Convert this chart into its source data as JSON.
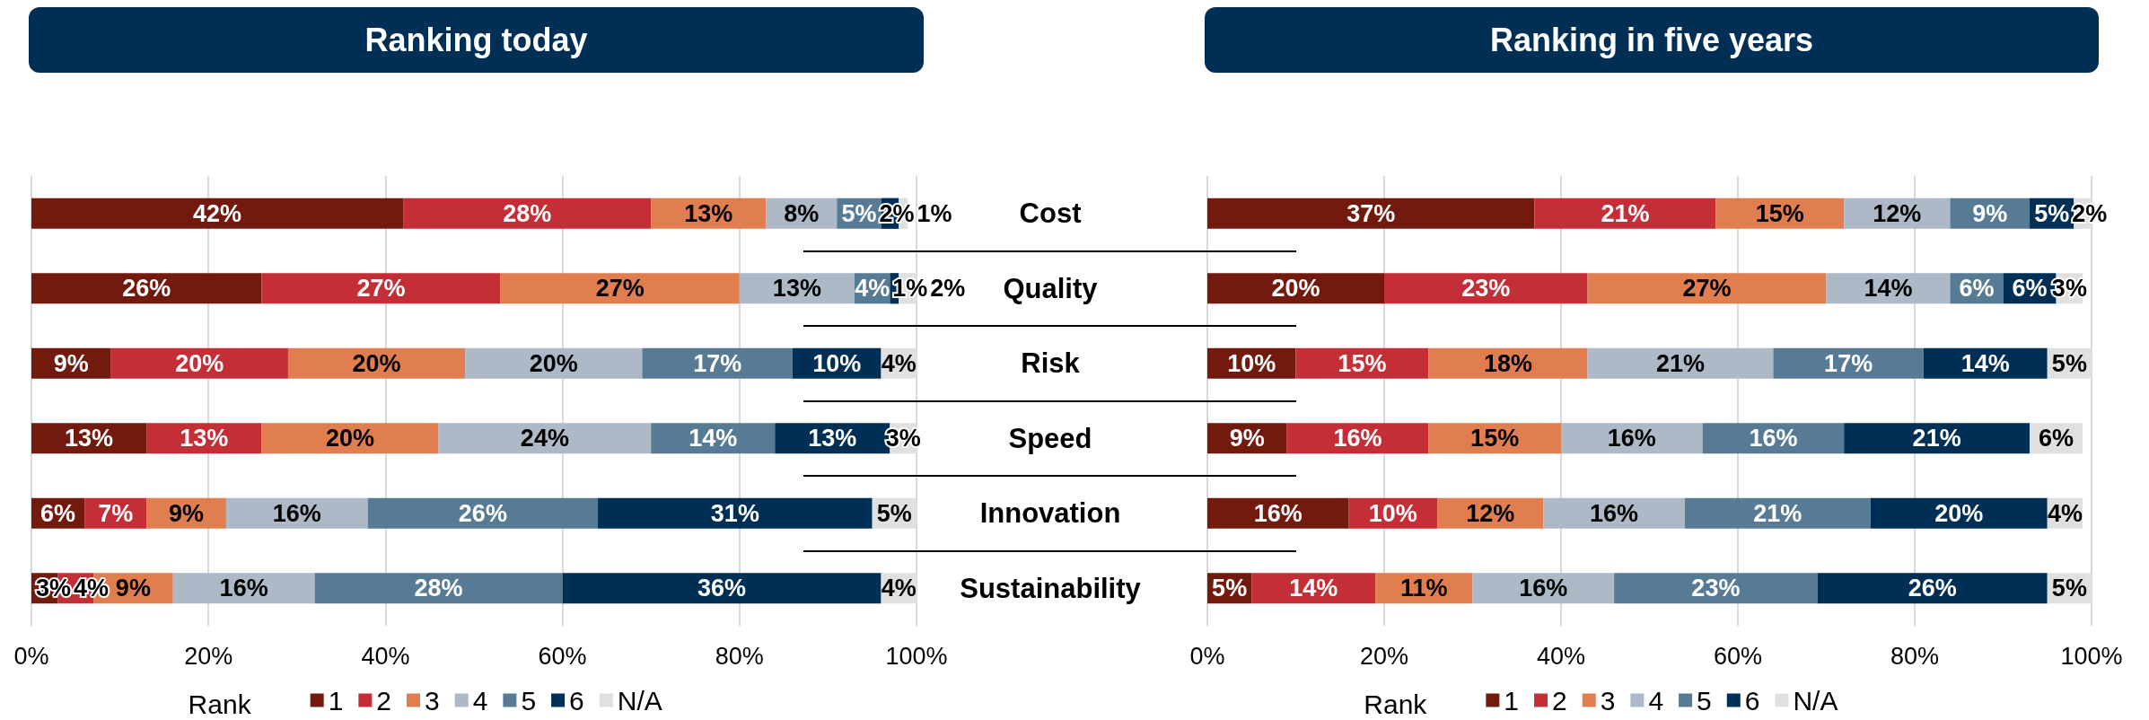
{
  "chart_data": [
    {
      "type": "bar",
      "orientation": "horizontal",
      "stacked": true,
      "title": "Ranking today",
      "legend_title": "Rank",
      "legend": "bottom",
      "grid": "x",
      "categories": [
        "Cost",
        "Quality",
        "Risk",
        "Speed",
        "Innovation",
        "Sustainability"
      ],
      "xlim": [
        0,
        100
      ],
      "xticks": [
        {
          "value": 0,
          "label": "0%"
        },
        {
          "value": 20,
          "label": "20%"
        },
        {
          "value": 40,
          "label": "40%"
        },
        {
          "value": 60,
          "label": "60%"
        },
        {
          "value": 80,
          "label": "80%"
        },
        {
          "value": 100,
          "label": "100%"
        }
      ],
      "series": [
        {
          "name": "1",
          "color": "#731a0f",
          "values": [
            42,
            26,
            9,
            13,
            6,
            3
          ],
          "value_labels": [
            "42%",
            "26%",
            "9%",
            "13%",
            "6%",
            "3%"
          ]
        },
        {
          "name": "2",
          "color": "#c42e37",
          "values": [
            28,
            27,
            20,
            13,
            7,
            4
          ],
          "value_labels": [
            "28%",
            "27%",
            "20%",
            "13%",
            "7%",
            "4%"
          ]
        },
        {
          "name": "3",
          "color": "#e07e50",
          "values": [
            13,
            27,
            20,
            20,
            9,
            9
          ],
          "value_labels": [
            "13%",
            "27%",
            "20%",
            "20%",
            "9%",
            "9%"
          ]
        },
        {
          "name": "4",
          "color": "#adb9c6",
          "values": [
            8,
            13,
            20,
            24,
            16,
            16
          ],
          "value_labels": [
            "8%",
            "13%",
            "20%",
            "24%",
            "16%",
            "16%"
          ]
        },
        {
          "name": "5",
          "color": "#587b95",
          "values": [
            5,
            4,
            17,
            14,
            26,
            28
          ],
          "value_labels": [
            "5%",
            "4%",
            "17%",
            "14%",
            "26%",
            "28%"
          ]
        },
        {
          "name": "6",
          "color": "#002f56",
          "values": [
            2,
            1,
            10,
            13,
            31,
            36
          ],
          "value_labels": [
            "2%",
            "1%",
            "10%",
            "13%",
            "31%",
            "36%"
          ]
        },
        {
          "name": "N/A",
          "color": "#e0e0e0",
          "values": [
            1,
            2,
            4,
            3,
            5,
            4
          ],
          "value_labels": [
            "1%",
            "2%",
            "4%",
            "3%",
            "5%",
            "4%"
          ]
        }
      ]
    },
    {
      "type": "bar",
      "orientation": "horizontal",
      "stacked": true,
      "title": "Ranking in five years",
      "legend_title": "Rank",
      "legend": "bottom",
      "grid": "x",
      "tick_labels": "x",
      "categories": [
        "Cost",
        "Quality",
        "Risk",
        "Speed",
        "Innovation",
        "Sustainability"
      ],
      "xlim": [
        0,
        100
      ],
      "xticks": [
        {
          "value": 0,
          "label": "0%"
        },
        {
          "value": 20,
          "label": "20%"
        },
        {
          "value": 40,
          "label": "40%"
        },
        {
          "value": 60,
          "label": "60%"
        },
        {
          "value": 80,
          "label": "80%"
        },
        {
          "value": 100,
          "label": "100%"
        }
      ],
      "series": [
        {
          "name": "1",
          "color": "#731a0f",
          "values": [
            37,
            20,
            10,
            9,
            16,
            5
          ],
          "value_labels": [
            "37%",
            "20%",
            "10%",
            "9%",
            "16%",
            "5%"
          ]
        },
        {
          "name": "2",
          "color": "#c42e37",
          "values": [
            20.5,
            23,
            15,
            16,
            10,
            14
          ],
          "value_labels": [
            "21%",
            "23%",
            "15%",
            "16%",
            "10%",
            "14%"
          ]
        },
        {
          "name": "3",
          "color": "#e07e50",
          "values": [
            14.5,
            27,
            18,
            15,
            12,
            11
          ],
          "value_labels": [
            "15%",
            "27%",
            "18%",
            "15%",
            "12%",
            "11%"
          ]
        },
        {
          "name": "4",
          "color": "#adb9c6",
          "values": [
            12,
            14,
            21,
            16,
            16,
            16
          ],
          "value_labels": [
            "12%",
            "14%",
            "21%",
            "16%",
            "16%",
            "16%"
          ]
        },
        {
          "name": "5",
          "color": "#587b95",
          "values": [
            9,
            6,
            17,
            16,
            21,
            23
          ],
          "value_labels": [
            "9%",
            "6%",
            "17%",
            "16%",
            "21%",
            "23%"
          ]
        },
        {
          "name": "6",
          "color": "#002f56",
          "values": [
            5,
            6,
            14,
            21,
            20,
            26
          ],
          "value_labels": [
            "5%",
            "6%",
            "14%",
            "21%",
            "20%",
            "26%"
          ]
        },
        {
          "name": "N/A",
          "color": "#e0e0e0",
          "values": [
            2,
            3,
            5,
            6,
            4,
            5
          ],
          "value_labels": [
            "2%",
            "3%",
            "5%",
            "6%",
            "4%",
            "5%"
          ]
        }
      ]
    }
  ]
}
